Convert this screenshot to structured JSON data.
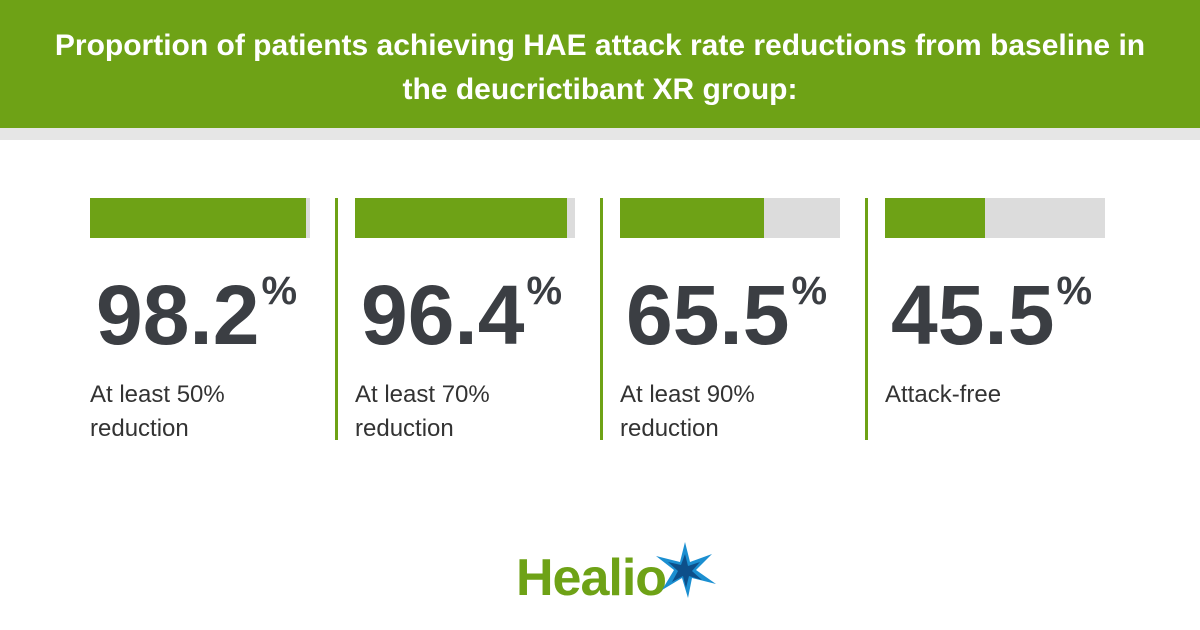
{
  "chart_data": {
    "type": "bar",
    "title": "Proportion of patients achieving HAE attack rate reductions from baseline in the deucrictibant XR group:",
    "categories": [
      "At least 50% reduction",
      "At least 70% reduction",
      "At least 90% reduction",
      "Attack-free"
    ],
    "values": [
      98.2,
      96.4,
      65.5,
      45.5
    ],
    "unit": "%",
    "xlim": [
      0,
      100
    ],
    "color": "#6ea216"
  },
  "brand": "Healio"
}
